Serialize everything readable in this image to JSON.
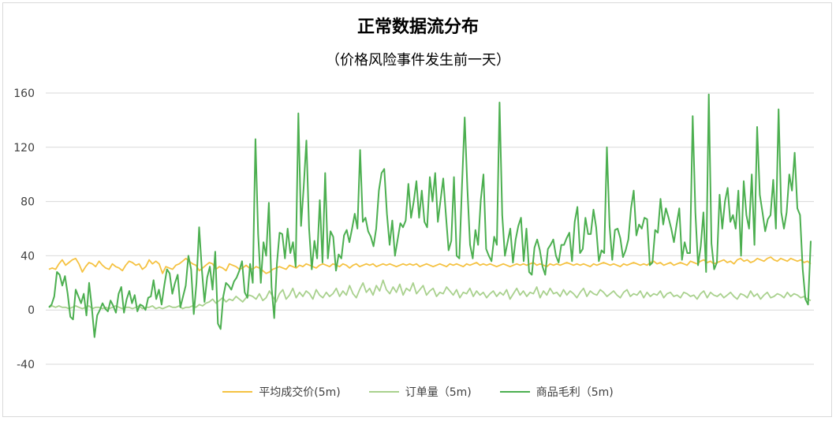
{
  "chart_data": {
    "type": "line",
    "title": "正常数据流分布",
    "subtitle": "（价格风险事件发生前一天）",
    "ylim": [
      -40,
      160
    ],
    "yticks": [
      "160",
      "120",
      "80",
      "40",
      "0",
      "-40"
    ],
    "ytick_values": [
      160,
      120,
      80,
      40,
      0,
      -40
    ],
    "grid": true,
    "legend_position": "bottom",
    "series": [
      {
        "name": "平均成交价(5m)",
        "color": "#f5c242",
        "values": [
          30,
          31,
          30,
          34,
          37,
          33,
          35,
          37,
          38,
          34,
          28,
          32,
          35,
          34,
          32,
          36,
          33,
          31,
          30,
          34,
          32,
          31,
          29,
          33,
          36,
          35,
          33,
          34,
          30,
          32,
          37,
          34,
          36,
          34,
          27,
          32,
          31,
          30,
          33,
          34,
          36,
          38,
          36,
          34,
          33,
          29,
          31,
          33,
          35,
          34,
          30,
          32,
          31,
          29,
          34,
          33,
          32,
          30,
          31,
          33,
          31,
          30,
          32,
          31,
          29,
          27,
          28,
          30,
          31,
          32,
          31,
          30,
          33,
          32,
          31,
          33,
          32,
          34,
          33,
          32,
          31,
          33,
          34,
          33,
          32,
          34,
          33,
          32,
          34,
          33,
          31,
          33,
          34,
          32,
          33,
          34,
          33,
          34,
          32,
          33,
          34,
          33,
          34,
          33,
          32,
          33,
          34,
          33,
          34,
          33,
          34,
          32,
          33,
          34,
          33,
          32,
          33,
          34,
          33,
          32,
          34,
          33,
          34,
          33,
          32,
          34,
          33,
          34,
          35,
          33,
          34,
          33,
          34,
          33,
          32,
          33,
          34,
          33,
          32,
          33,
          34,
          33,
          34,
          33,
          34,
          35,
          33,
          34,
          33,
          32,
          34,
          33,
          34,
          33,
          34,
          35,
          34,
          33,
          34,
          33,
          34,
          33,
          32,
          34,
          33,
          34,
          35,
          34,
          33,
          34,
          33,
          32,
          34,
          33,
          34,
          35,
          34,
          33,
          34,
          33,
          35,
          36,
          34,
          35,
          33,
          34,
          35,
          33,
          34,
          35,
          34,
          33,
          36,
          35,
          34,
          36,
          37,
          35,
          36,
          34,
          35,
          36,
          37,
          35,
          36,
          34,
          37,
          38,
          36,
          37,
          35,
          36,
          38,
          37,
          36,
          38,
          39,
          37,
          36,
          38,
          37,
          36,
          38,
          37,
          36,
          37,
          35,
          36,
          34
        ]
      },
      {
        "name": "订单量（5m)",
        "color": "#a9d18e",
        "values": [
          2,
          3,
          2,
          3,
          2,
          2,
          1,
          2,
          3,
          2,
          1,
          2,
          3,
          1,
          2,
          2,
          1,
          2,
          1,
          2,
          3,
          2,
          1,
          2,
          2,
          1,
          2,
          3,
          1,
          2,
          2,
          3,
          1,
          2,
          1,
          2,
          3,
          2,
          2,
          3,
          1,
          2,
          2,
          3,
          2,
          4,
          3,
          5,
          6,
          8,
          5,
          7,
          9,
          6,
          8,
          7,
          10,
          8,
          6,
          9,
          11,
          10,
          8,
          12,
          7,
          9,
          14,
          10,
          6,
          12,
          15,
          8,
          11,
          16,
          9,
          13,
          10,
          14,
          12,
          8,
          15,
          11,
          9,
          13,
          10,
          12,
          16,
          10,
          14,
          11,
          18,
          12,
          9,
          15,
          20,
          13,
          16,
          11,
          18,
          14,
          22,
          15,
          12,
          17,
          13,
          19,
          11,
          16,
          14,
          20,
          12,
          15,
          18,
          11,
          14,
          16,
          10,
          13,
          12,
          17,
          14,
          11,
          15,
          9,
          13,
          12,
          16,
          10,
          14,
          11,
          13,
          9,
          12,
          14,
          10,
          13,
          11,
          15,
          8,
          12,
          16,
          11,
          14,
          10,
          13,
          12,
          17,
          9,
          14,
          11,
          16,
          12,
          13,
          10,
          15,
          11,
          14,
          12,
          9,
          13,
          16,
          10,
          14,
          12,
          11,
          15,
          13,
          10,
          12,
          14,
          11,
          9,
          13,
          15,
          10,
          12,
          11,
          14,
          9,
          13,
          10,
          12,
          11,
          14,
          9,
          12,
          13,
          10,
          11,
          9,
          13,
          12,
          10,
          11,
          8,
          12,
          14,
          9,
          13,
          11,
          10,
          12,
          9,
          11,
          13,
          10,
          8,
          12,
          11,
          9,
          14,
          10,
          12,
          8,
          11,
          13,
          9,
          10,
          12,
          11,
          9,
          13,
          10,
          12,
          11,
          9,
          10,
          8,
          7
        ]
      },
      {
        "name": "商品毛利（5m)",
        "color": "#4caf50",
        "values": [
          2,
          4,
          10,
          28,
          26,
          18,
          25,
          12,
          -5,
          -7,
          15,
          10,
          5,
          12,
          -4,
          20,
          2,
          -20,
          -4,
          0,
          5,
          1,
          -1,
          7,
          3,
          -2,
          12,
          17,
          -2,
          8,
          14,
          5,
          11,
          -1,
          4,
          3,
          0,
          9,
          10,
          22,
          8,
          15,
          4,
          18,
          30,
          27,
          12,
          20,
          26,
          2,
          10,
          18,
          40,
          30,
          -3,
          20,
          61,
          30,
          6,
          24,
          32,
          15,
          43,
          -10,
          -14,
          10,
          20,
          18,
          15,
          21,
          24,
          29,
          36,
          13,
          9,
          34,
          20,
          126,
          56,
          20,
          50,
          40,
          79,
          17,
          -6,
          34,
          57,
          56,
          38,
          60,
          42,
          50,
          32,
          145,
          62,
          91,
          125,
          60,
          30,
          51,
          38,
          81,
          35,
          101,
          38,
          58,
          54,
          29,
          41,
          38,
          55,
          59,
          50,
          60,
          71,
          60,
          118,
          65,
          68,
          58,
          54,
          47,
          60,
          88,
          101,
          104,
          71,
          48,
          66,
          40,
          52,
          64,
          61,
          66,
          93,
          68,
          80,
          95,
          68,
          88,
          65,
          61,
          98,
          80,
          101,
          65,
          81,
          97,
          70,
          44,
          51,
          98,
          40,
          38,
          92,
          142,
          90,
          48,
          38,
          59,
          48,
          81,
          100,
          45,
          40,
          36,
          54,
          48,
          153,
          70,
          40,
          50,
          60,
          35,
          52,
          62,
          68,
          36,
          60,
          28,
          26,
          46,
          52,
          44,
          32,
          26,
          45,
          48,
          52,
          40,
          35,
          48,
          48,
          53,
          57,
          36,
          65,
          76,
          42,
          45,
          68,
          56,
          56,
          74,
          61,
          36,
          44,
          42,
          120,
          62,
          37,
          59,
          60,
          53,
          39,
          44,
          52,
          75,
          88,
          55,
          63,
          60,
          68,
          67,
          33,
          35,
          59,
          57,
          82,
          63,
          75,
          68,
          60,
          50,
          63,
          75,
          37,
          50,
          42,
          42,
          143,
          72,
          33,
          47,
          72,
          28,
          159,
          49,
          30,
          35,
          85,
          60,
          80,
          90,
          65,
          70,
          60,
          88,
          40,
          95,
          70,
          60,
          100,
          48,
          135,
          85,
          72,
          58,
          67,
          70,
          96,
          60,
          148,
          72,
          60,
          72,
          100,
          88,
          116,
          75,
          70,
          30,
          8,
          4,
          51
        ]
      }
    ]
  }
}
